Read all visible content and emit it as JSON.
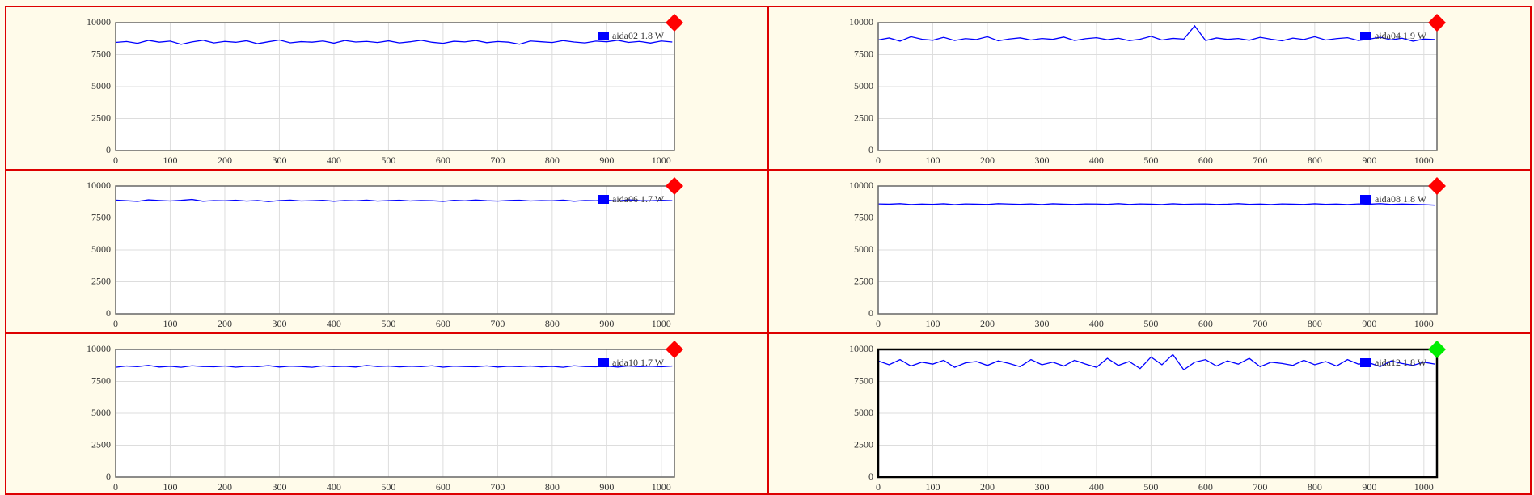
{
  "chart_data": [
    {
      "type": "line",
      "legend": "upper right",
      "grid": true,
      "frame_color": "#666666",
      "indicator_color": "#ff0000",
      "xlim": [
        0,
        1024
      ],
      "xticks": [
        0,
        100,
        200,
        300,
        400,
        500,
        600,
        700,
        800,
        900,
        1000
      ],
      "ylim": [
        0,
        10000
      ],
      "yticks": [
        0,
        2500,
        5000,
        7500,
        10000
      ],
      "x": [
        0,
        20,
        40,
        60,
        80,
        100,
        120,
        140,
        160,
        180,
        200,
        220,
        240,
        260,
        280,
        300,
        320,
        340,
        360,
        380,
        400,
        420,
        440,
        460,
        480,
        500,
        520,
        540,
        560,
        580,
        600,
        620,
        640,
        660,
        680,
        700,
        720,
        740,
        760,
        780,
        800,
        820,
        840,
        860,
        880,
        900,
        920,
        940,
        960,
        980,
        1000,
        1020
      ],
      "series": [
        {
          "name": "aida02 1.8 W",
          "color": "#0000ff",
          "values": [
            8450,
            8520,
            8380,
            8610,
            8470,
            8550,
            8300,
            8490,
            8620,
            8410,
            8530,
            8460,
            8580,
            8350,
            8500,
            8640,
            8420,
            8510,
            8470,
            8560,
            8390,
            8600,
            8480,
            8530,
            8440,
            8570,
            8410,
            8500,
            8620,
            8460,
            8380,
            8540,
            8490,
            8600,
            8430,
            8520,
            8470,
            8310,
            8560,
            8500,
            8440,
            8590,
            8480,
            8410,
            8550,
            8500,
            8620,
            8450,
            8530,
            8400,
            8560,
            8480
          ]
        }
      ]
    },
    {
      "type": "line",
      "legend": "upper right",
      "grid": true,
      "frame_color": "#666666",
      "indicator_color": "#ff0000",
      "xlim": [
        0,
        1024
      ],
      "xticks": [
        0,
        100,
        200,
        300,
        400,
        500,
        600,
        700,
        800,
        900,
        1000
      ],
      "ylim": [
        0,
        10000
      ],
      "yticks": [
        0,
        2500,
        5000,
        7500,
        10000
      ],
      "x": [
        0,
        20,
        40,
        60,
        80,
        100,
        120,
        140,
        160,
        180,
        200,
        220,
        240,
        260,
        280,
        300,
        320,
        340,
        360,
        380,
        400,
        420,
        440,
        460,
        480,
        500,
        520,
        540,
        560,
        580,
        600,
        620,
        640,
        660,
        680,
        700,
        720,
        740,
        760,
        780,
        800,
        820,
        840,
        860,
        880,
        900,
        920,
        940,
        960,
        980,
        1000,
        1020
      ],
      "series": [
        {
          "name": "aida04 1.9 W",
          "color": "#0000ff",
          "values": [
            8650,
            8800,
            8550,
            8900,
            8700,
            8620,
            8850,
            8600,
            8750,
            8680,
            8900,
            8580,
            8720,
            8810,
            8640,
            8760,
            8690,
            8870,
            8600,
            8740,
            8820,
            8660,
            8780,
            8590,
            8700,
            8930,
            8640,
            8770,
            8710,
            9750,
            8600,
            8800,
            8690,
            8760,
            8620,
            8850,
            8700,
            8580,
            8790,
            8680,
            8900,
            8640,
            8750,
            8820,
            8600,
            8710,
            8860,
            8650,
            8780,
            8550,
            8720,
            8680
          ]
        }
      ]
    },
    {
      "type": "line",
      "legend": "upper right",
      "grid": true,
      "frame_color": "#666666",
      "indicator_color": "#ff0000",
      "xlim": [
        0,
        1024
      ],
      "xticks": [
        0,
        100,
        200,
        300,
        400,
        500,
        600,
        700,
        800,
        900,
        1000
      ],
      "ylim": [
        0,
        10000
      ],
      "yticks": [
        0,
        2500,
        5000,
        7500,
        10000
      ],
      "x": [
        0,
        20,
        40,
        60,
        80,
        100,
        120,
        140,
        160,
        180,
        200,
        220,
        240,
        260,
        280,
        300,
        320,
        340,
        360,
        380,
        400,
        420,
        440,
        460,
        480,
        500,
        520,
        540,
        560,
        580,
        600,
        620,
        640,
        660,
        680,
        700,
        720,
        740,
        760,
        780,
        800,
        820,
        840,
        860,
        880,
        900,
        920,
        940,
        960,
        980,
        1000,
        1020
      ],
      "series": [
        {
          "name": "aida06 1.7 W",
          "color": "#0000ff",
          "values": [
            8900,
            8850,
            8800,
            8920,
            8870,
            8830,
            8880,
            8950,
            8810,
            8860,
            8840,
            8890,
            8820,
            8870,
            8780,
            8860,
            8900,
            8830,
            8850,
            8880,
            8810,
            8870,
            8840,
            8900,
            8820,
            8860,
            8890,
            8830,
            8870,
            8850,
            8800,
            8880,
            8840,
            8910,
            8850,
            8820,
            8870,
            8890,
            8830,
            8860,
            8840,
            8900,
            8810,
            8870,
            8850,
            8880,
            8830,
            8920,
            8860,
            8840,
            8880,
            8850
          ]
        }
      ]
    },
    {
      "type": "line",
      "legend": "upper right",
      "grid": true,
      "frame_color": "#666666",
      "indicator_color": "#ff0000",
      "xlim": [
        0,
        1024
      ],
      "xticks": [
        0,
        100,
        200,
        300,
        400,
        500,
        600,
        700,
        800,
        900,
        1000
      ],
      "ylim": [
        0,
        10000
      ],
      "yticks": [
        0,
        2500,
        5000,
        7500,
        10000
      ],
      "x": [
        0,
        20,
        40,
        60,
        80,
        100,
        120,
        140,
        160,
        180,
        200,
        220,
        240,
        260,
        280,
        300,
        320,
        340,
        360,
        380,
        400,
        420,
        440,
        460,
        480,
        500,
        520,
        540,
        560,
        580,
        600,
        620,
        640,
        660,
        680,
        700,
        720,
        740,
        760,
        780,
        800,
        820,
        840,
        860,
        880,
        900,
        920,
        940,
        960,
        980,
        1000,
        1020
      ],
      "series": [
        {
          "name": "aida08 1.8 W",
          "color": "#0000ff",
          "values": [
            8600,
            8580,
            8620,
            8550,
            8590,
            8570,
            8610,
            8540,
            8600,
            8580,
            8560,
            8620,
            8590,
            8570,
            8600,
            8550,
            8610,
            8580,
            8560,
            8600,
            8590,
            8570,
            8620,
            8560,
            8600,
            8580,
            8550,
            8610,
            8570,
            8590,
            8600,
            8560,
            8580,
            8620,
            8570,
            8590,
            8550,
            8600,
            8580,
            8560,
            8610,
            8570,
            8590,
            8550,
            8600,
            8580,
            8620,
            8560,
            8590,
            8570,
            8540,
            8500
          ]
        }
      ]
    },
    {
      "type": "line",
      "legend": "upper right",
      "grid": true,
      "frame_color": "#666666",
      "indicator_color": "#ff0000",
      "xlim": [
        0,
        1024
      ],
      "xticks": [
        0,
        100,
        200,
        300,
        400,
        500,
        600,
        700,
        800,
        900,
        1000
      ],
      "ylim": [
        0,
        10000
      ],
      "yticks": [
        0,
        2500,
        5000,
        7500,
        10000
      ],
      "x": [
        0,
        20,
        40,
        60,
        80,
        100,
        120,
        140,
        160,
        180,
        200,
        220,
        240,
        260,
        280,
        300,
        320,
        340,
        360,
        380,
        400,
        420,
        440,
        460,
        480,
        500,
        520,
        540,
        560,
        580,
        600,
        620,
        640,
        660,
        680,
        700,
        720,
        740,
        760,
        780,
        800,
        820,
        840,
        860,
        880,
        900,
        920,
        940,
        960,
        980,
        1000,
        1020
      ],
      "series": [
        {
          "name": "aida10 1.7 W",
          "color": "#0000ff",
          "values": [
            8600,
            8700,
            8650,
            8750,
            8620,
            8680,
            8600,
            8720,
            8660,
            8640,
            8700,
            8610,
            8680,
            8650,
            8730,
            8620,
            8690,
            8660,
            8600,
            8710,
            8650,
            8680,
            8620,
            8740,
            8660,
            8700,
            8630,
            8680,
            8650,
            8720,
            8610,
            8690,
            8660,
            8640,
            8710,
            8620,
            8680,
            8650,
            8700,
            8630,
            8670,
            8600,
            8720,
            8660,
            8640,
            8690,
            8620,
            8700,
            8650,
            8680,
            8640,
            8700
          ]
        }
      ]
    },
    {
      "type": "line",
      "legend": "upper right",
      "grid": true,
      "frame_color": "#000000",
      "indicator_color": "#00ee00",
      "xlim": [
        0,
        1024
      ],
      "xticks": [
        0,
        100,
        200,
        300,
        400,
        500,
        600,
        700,
        800,
        900,
        1000
      ],
      "ylim": [
        0,
        10000
      ],
      "yticks": [
        0,
        2500,
        5000,
        7500,
        10000
      ],
      "x": [
        0,
        20,
        40,
        60,
        80,
        100,
        120,
        140,
        160,
        180,
        200,
        220,
        240,
        260,
        280,
        300,
        320,
        340,
        360,
        380,
        400,
        420,
        440,
        460,
        480,
        500,
        520,
        540,
        560,
        580,
        600,
        620,
        640,
        660,
        680,
        700,
        720,
        740,
        760,
        780,
        800,
        820,
        840,
        860,
        880,
        900,
        920,
        940,
        960,
        980,
        1000,
        1020
      ],
      "series": [
        {
          "name": "aida12 1.8 W",
          "color": "#0000ff",
          "values": [
            9100,
            8800,
            9200,
            8700,
            9000,
            8850,
            9150,
            8600,
            8950,
            9050,
            8750,
            9100,
            8900,
            8650,
            9200,
            8800,
            9000,
            8700,
            9150,
            8850,
            8600,
            9300,
            8750,
            9050,
            8500,
            9400,
            8800,
            9600,
            8400,
            9000,
            9200,
            8700,
            9100,
            8850,
            9300,
            8650,
            9000,
            8900,
            8750,
            9150,
            8800,
            9050,
            8700,
            9200,
            8850,
            8950,
            8650,
            9100,
            8900,
            8750,
            9000,
            8850
          ]
        }
      ]
    }
  ]
}
